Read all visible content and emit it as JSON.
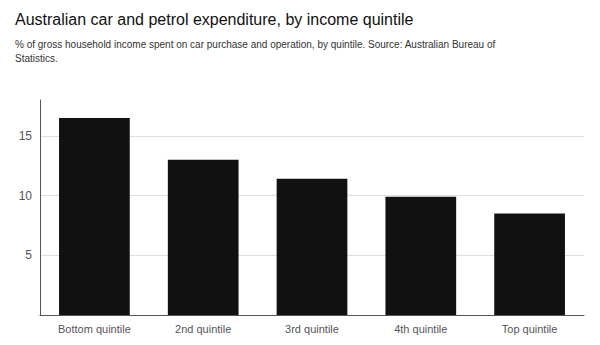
{
  "chart_data": {
    "type": "bar",
    "title": "Australian car and petrol expenditure, by income quintile",
    "subtitle": "% of gross household income spent on car purchase and operation, by quintile. Source: Australian Bureau of\nStatistics.",
    "categories": [
      "Bottom quintile",
      "2nd quintile",
      "3rd quintile",
      "4th quintile",
      "Top quintile"
    ],
    "values": [
      16.5,
      13.0,
      11.4,
      9.9,
      8.5
    ],
    "color": "#111111",
    "ylim": [
      0,
      18
    ],
    "yticks": [
      5,
      10,
      15
    ],
    "grid": true
  }
}
